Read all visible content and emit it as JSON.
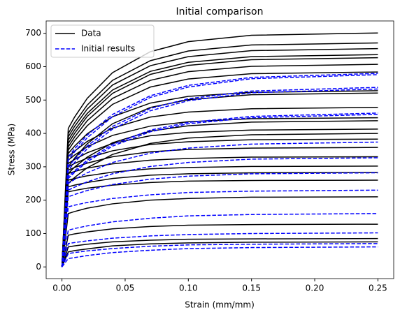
{
  "chart_data": {
    "type": "line",
    "title": "Initial comparison",
    "xlabel": "Strain (mm/mm)",
    "ylabel": "Stress (MPa)",
    "x": [
      0,
      0.005,
      0.01,
      0.02,
      0.04,
      0.07,
      0.1,
      0.15,
      0.25
    ],
    "xlim": [
      -0.0125,
      0.2625
    ],
    "ylim": [
      -35,
      737
    ],
    "xticks": [
      {
        "value": 0,
        "label": "0.00"
      },
      0.05,
      {
        "value": 0.1,
        "label": "0.10"
      },
      0.15,
      {
        "value": 0.2,
        "label": "0.20"
      },
      0.25
    ],
    "yticks": [
      0,
      100,
      200,
      300,
      400,
      500,
      600,
      700
    ],
    "legend": "upper left",
    "series": [
      {
        "name": "Data",
        "color": "#000000",
        "dashed": false,
        "curves": [
          [
            0,
            415,
            449,
            505,
            582,
            645,
            675,
            694,
            701
          ],
          [
            0,
            400,
            432,
            485,
            559,
            618,
            647,
            665,
            671
          ],
          [
            0,
            390,
            421,
            473,
            545,
            603,
            630,
            648,
            654
          ],
          [
            0,
            380,
            410,
            460,
            530,
            586,
            613,
            630,
            636
          ],
          [
            0,
            370,
            400,
            451,
            520,
            577,
            604,
            621,
            627
          ],
          [
            0,
            360,
            389,
            438,
            505,
            559,
            585,
            601,
            607
          ],
          [
            0,
            350,
            378,
            423,
            487,
            539,
            563,
            579,
            584
          ],
          [
            0,
            340,
            362,
            399,
            450,
            491,
            511,
            523,
            528
          ],
          [
            0,
            300,
            326,
            369,
            429,
            478,
            501,
            516,
            521
          ],
          [
            0,
            330,
            347,
            376,
            416,
            449,
            464,
            474,
            478
          ],
          [
            0,
            320,
            335,
            360,
            394,
            422,
            435,
            444,
            447
          ],
          [
            0,
            280,
            299,
            329,
            372,
            407,
            423,
            434,
            438
          ],
          [
            0,
            310,
            322,
            342,
            370,
            393,
            403,
            410,
            413
          ],
          [
            0,
            250,
            268,
            297,
            337,
            370,
            386,
            396,
            400
          ],
          [
            0,
            300,
            310,
            326,
            348,
            367,
            375,
            381,
            383
          ],
          [
            0,
            290,
            298,
            311,
            330,
            345,
            352,
            356,
            358
          ],
          [
            0,
            280,
            286,
            296,
            309,
            320,
            325,
            329,
            330
          ],
          [
            0,
            260,
            265,
            273,
            284,
            294,
            298,
            301,
            302
          ],
          [
            0,
            240,
            245,
            253,
            265,
            275,
            279,
            282,
            283
          ],
          [
            0,
            225,
            229,
            236,
            245,
            253,
            257,
            259,
            260
          ],
          [
            0,
            160,
            166,
            176,
            189,
            200,
            205,
            209,
            210
          ],
          [
            0,
            95,
            99,
            105,
            114,
            121,
            125,
            127,
            128
          ],
          [
            0,
            60,
            63,
            68,
            75,
            80,
            83,
            84,
            85
          ],
          [
            0,
            45,
            49,
            54,
            63,
            69,
            72,
            74,
            75
          ]
        ]
      },
      {
        "name": "Initial results",
        "color": "#0000ff",
        "dashed": true,
        "curves": [
          [
            0,
            330,
            354,
            395,
            457,
            513,
            544,
            568,
            580
          ],
          [
            0,
            320,
            345,
            387,
            450,
            508,
            539,
            564,
            576
          ],
          [
            0,
            300,
            323,
            362,
            421,
            475,
            504,
            527,
            538
          ],
          [
            0,
            290,
            313,
            354,
            413,
            468,
            498,
            522,
            533
          ],
          [
            0,
            270,
            288,
            320,
            367,
            410,
            433,
            451,
            461
          ],
          [
            0,
            265,
            283,
            315,
            362,
            405,
            429,
            447,
            457
          ],
          [
            0,
            250,
            262,
            282,
            313,
            341,
            356,
            368,
            374
          ],
          [
            0,
            230,
            239,
            255,
            279,
            301,
            313,
            323,
            327
          ],
          [
            0,
            210,
            217,
            229,
            247,
            263,
            272,
            279,
            282
          ],
          [
            0,
            180,
            185,
            193,
            205,
            216,
            223,
            227,
            230
          ],
          [
            0,
            110,
            115,
            123,
            135,
            146,
            153,
            157,
            160
          ],
          [
            0,
            70,
            73,
            78,
            86,
            93,
            97,
            100,
            102
          ],
          [
            0,
            40,
            43,
            48,
            55,
            62,
            66,
            68,
            70
          ],
          [
            0,
            25,
            28,
            34,
            43,
            50,
            55,
            58,
            60
          ]
        ]
      }
    ]
  }
}
